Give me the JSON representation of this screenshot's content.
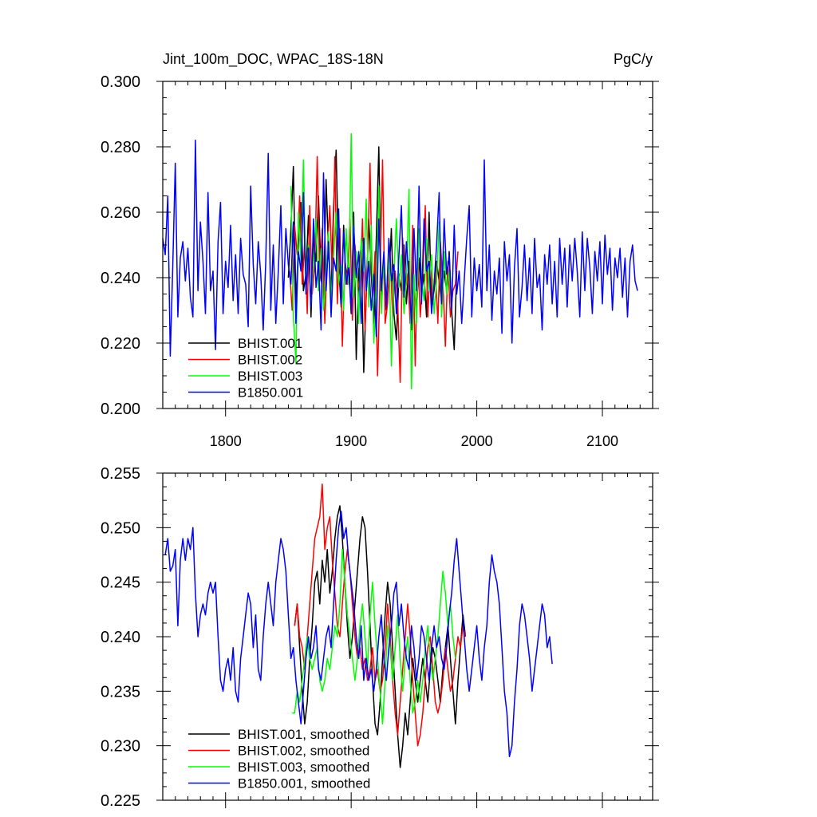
{
  "chart_data": [
    {
      "type": "line",
      "title": "Jint_100m_DOC, WPAC_18S-18N",
      "units": "PgC/y",
      "xlim": [
        1750,
        2140
      ],
      "ylim": [
        0.2,
        0.3
      ],
      "xticks": [
        1800,
        1900,
        2000,
        2100
      ],
      "xtick_labels": [
        "1800",
        "1900",
        "2000",
        "2100"
      ],
      "yticks": [
        0.2,
        0.22,
        0.24,
        0.26,
        0.28,
        0.3
      ],
      "ytick_labels": [
        "0.200",
        "0.220",
        "0.240",
        "0.260",
        "0.280",
        "0.300"
      ],
      "legend_position": "bottom-left",
      "grid": false,
      "series": [
        {
          "name": "BHIST.001",
          "color": "#000000",
          "x_start": 1850,
          "x_step": 2,
          "values": [
            0.24,
            0.255,
            0.274,
            0.232,
            0.25,
            0.263,
            0.236,
            0.241,
            0.259,
            0.228,
            0.252,
            0.245,
            0.265,
            0.24,
            0.233,
            0.27,
            0.248,
            0.236,
            0.262,
            0.279,
            0.244,
            0.231,
            0.256,
            0.238,
            0.247,
            0.229,
            0.26,
            0.215,
            0.242,
            0.25,
            0.211,
            0.235,
            0.258,
            0.241,
            0.226,
            0.252,
            0.28,
            0.233,
            0.244,
            0.23,
            0.238,
            0.255,
            0.229,
            0.221,
            0.241,
            0.236,
            0.25,
            0.232,
            0.245,
            0.224,
            0.238,
            0.229,
            0.246,
            0.235,
            0.241,
            0.228,
            0.26,
            0.232,
            0.236,
            0.245,
            0.239,
            0.232,
            0.242,
            0.236,
            0.248,
            0.23,
            0.218,
            0.242
          ]
        },
        {
          "name": "BHIST.002",
          "color": "#ff0000",
          "x_start": 1851,
          "x_step": 2,
          "values": [
            0.242,
            0.23,
            0.256,
            0.247,
            0.265,
            0.238,
            0.251,
            0.229,
            0.262,
            0.235,
            0.244,
            0.277,
            0.239,
            0.255,
            0.226,
            0.248,
            0.262,
            0.24,
            0.277,
            0.232,
            0.255,
            0.219,
            0.246,
            0.238,
            0.258,
            0.227,
            0.25,
            0.24,
            0.235,
            0.258,
            0.224,
            0.245,
            0.275,
            0.232,
            0.248,
            0.21,
            0.24,
            0.276,
            0.226,
            0.232,
            0.248,
            0.228,
            0.242,
            0.233,
            0.208,
            0.252,
            0.236,
            0.241,
            0.226,
            0.256,
            0.213,
            0.249,
            0.228,
            0.24,
            0.262,
            0.228,
            0.245,
            0.232,
            0.243,
            0.226,
            0.251,
            0.239,
            0.219,
            0.245,
            0.228,
            0.236,
            0.238,
            0.248
          ]
        },
        {
          "name": "BHIST.003",
          "color": "#00ff00",
          "x_start": 1852,
          "x_step": 2,
          "values": [
            0.268,
            0.228,
            0.214,
            0.26,
            0.245,
            0.276,
            0.238,
            0.25,
            0.232,
            0.245,
            0.258,
            0.236,
            0.249,
            0.23,
            0.24,
            0.254,
            0.233,
            0.247,
            0.26,
            0.238,
            0.244,
            0.23,
            0.255,
            0.238,
            0.284,
            0.234,
            0.248,
            0.226,
            0.252,
            0.242,
            0.264,
            0.231,
            0.256,
            0.22,
            0.236,
            0.268,
            0.229,
            0.245,
            0.233,
            0.25,
            0.213,
            0.241,
            0.258,
            0.237,
            0.247,
            0.229,
            0.239,
            0.267,
            0.206,
            0.241,
            0.226,
            0.255,
            0.24,
            0.233,
            0.252,
            0.236,
            0.247,
            0.229,
            0.239,
            0.257,
            0.228,
            0.248,
            0.235,
            0.242,
            0.23
          ]
        },
        {
          "name": "B1850.001",
          "color": "#0000ff",
          "x_start": 1750,
          "x_step": 2,
          "values": [
            0.252,
            0.247,
            0.265,
            0.216,
            0.244,
            0.275,
            0.228,
            0.246,
            0.251,
            0.239,
            0.249,
            0.234,
            0.228,
            0.282,
            0.236,
            0.257,
            0.245,
            0.229,
            0.266,
            0.236,
            0.242,
            0.218,
            0.251,
            0.263,
            0.229,
            0.245,
            0.237,
            0.256,
            0.233,
            0.247,
            0.229,
            0.252,
            0.241,
            0.238,
            0.225,
            0.268,
            0.244,
            0.232,
            0.251,
            0.241,
            0.224,
            0.245,
            0.278,
            0.23,
            0.25,
            0.226,
            0.242,
            0.262,
            0.232,
            0.255,
            0.244,
            0.238,
            0.257,
            0.226,
            0.248,
            0.242,
            0.266,
            0.235,
            0.249,
            0.231,
            0.258,
            0.237,
            0.245,
            0.224,
            0.272,
            0.236,
            0.251,
            0.228,
            0.246,
            0.242,
            0.261,
            0.232,
            0.254,
            0.238,
            0.243,
            0.229,
            0.256,
            0.24,
            0.248,
            0.226,
            0.252,
            0.236,
            0.245,
            0.23,
            0.241,
            0.222,
            0.258,
            0.236,
            0.248,
            0.231,
            0.252,
            0.239,
            0.244,
            0.229,
            0.247,
            0.262,
            0.234,
            0.251,
            0.24,
            0.226,
            0.255,
            0.236,
            0.268,
            0.232,
            0.258,
            0.242,
            0.245,
            0.229,
            0.238,
            0.25,
            0.266,
            0.232,
            0.258,
            0.241,
            0.247,
            0.23,
            0.256,
            0.235,
            0.242,
            0.226,
            0.239,
            0.252,
            0.262,
            0.228,
            0.246,
            0.236,
            0.244,
            0.231,
            0.276,
            0.236,
            0.25,
            0.227,
            0.242,
            0.235,
            0.246,
            0.223,
            0.251,
            0.239,
            0.247,
            0.22,
            0.243,
            0.255,
            0.228,
            0.237,
            0.25,
            0.233,
            0.246,
            0.229,
            0.252,
            0.237,
            0.241,
            0.224,
            0.247,
            0.238,
            0.25,
            0.232,
            0.245,
            0.228,
            0.252,
            0.238,
            0.249,
            0.231,
            0.25,
            0.239,
            0.252,
            0.242,
            0.228,
            0.254,
            0.236,
            0.252,
            0.243,
            0.229,
            0.248,
            0.239,
            0.251,
            0.232,
            0.253,
            0.241,
            0.249,
            0.23,
            0.246,
            0.24,
            0.249,
            0.234,
            0.246,
            0.228,
            0.245,
            0.25,
            0.239,
            0.236
          ]
        }
      ]
    },
    {
      "type": "line",
      "title": "",
      "xlim": [
        1750,
        2140
      ],
      "ylim": [
        0.225,
        0.255
      ],
      "xticks": [
        1800,
        1900,
        2000,
        2100
      ],
      "yticks": [
        0.225,
        0.23,
        0.235,
        0.24,
        0.245,
        0.25,
        0.255
      ],
      "ytick_labels": [
        "0.225",
        "0.230",
        "0.235",
        "0.240",
        "0.245",
        "0.250",
        "0.255"
      ],
      "legend_position": "bottom-left",
      "grid": false,
      "series": [
        {
          "name": "BHIST.001, smoothed",
          "color": "#000000",
          "x_start": 1855,
          "x_step": 2,
          "values": [
            0.241,
            0.243,
            0.239,
            0.235,
            0.232,
            0.234,
            0.238,
            0.241,
            0.245,
            0.246,
            0.243,
            0.247,
            0.245,
            0.248,
            0.244,
            0.246,
            0.249,
            0.251,
            0.252,
            0.249,
            0.245,
            0.241,
            0.238,
            0.24,
            0.243,
            0.246,
            0.249,
            0.251,
            0.25,
            0.246,
            0.241,
            0.236,
            0.232,
            0.231,
            0.234,
            0.238,
            0.242,
            0.245,
            0.243,
            0.239,
            0.235,
            0.231,
            0.228,
            0.23,
            0.233,
            0.231,
            0.234,
            0.238,
            0.236,
            0.234,
            0.236,
            0.238,
            0.236,
            0.234,
            0.237,
            0.239,
            0.238,
            0.236,
            0.234,
            0.237,
            0.239,
            0.241,
            0.238,
            0.235,
            0.232,
            0.236,
            0.239,
            0.242,
            0.24
          ]
        },
        {
          "name": "BHIST.002, smoothed",
          "color": "#ff0000",
          "x_start": 1855,
          "x_step": 2,
          "values": [
            0.241,
            0.243,
            0.24,
            0.239,
            0.237,
            0.24,
            0.243,
            0.246,
            0.249,
            0.25,
            0.251,
            0.254,
            0.248,
            0.25,
            0.251,
            0.247,
            0.244,
            0.241,
            0.24,
            0.243,
            0.246,
            0.248,
            0.246,
            0.243,
            0.24,
            0.238,
            0.239,
            0.237,
            0.238,
            0.236,
            0.237,
            0.239,
            0.236,
            0.237,
            0.235,
            0.236,
            0.239,
            0.243,
            0.24,
            0.236,
            0.233,
            0.231,
            0.234,
            0.237,
            0.24,
            0.243,
            0.24,
            0.236,
            0.233,
            0.23,
            0.231,
            0.233,
            0.236,
            0.239,
            0.24,
            0.237,
            0.234,
            0.233,
            0.234,
            0.236,
            0.239,
            0.237,
            0.235,
            0.236,
            0.238,
            0.24,
            0.239,
            0.241,
            0.24
          ]
        },
        {
          "name": "BHIST.003, smoothed",
          "color": "#00ff00",
          "x_start": 1853,
          "x_step": 2,
          "values": [
            0.233,
            0.233,
            0.235,
            0.234,
            0.236,
            0.238,
            0.24,
            0.238,
            0.237,
            0.238,
            0.239,
            0.236,
            0.235,
            0.236,
            0.238,
            0.237,
            0.239,
            0.241,
            0.24,
            0.243,
            0.248,
            0.245,
            0.242,
            0.24,
            0.238,
            0.236,
            0.238,
            0.241,
            0.243,
            0.24,
            0.237,
            0.242,
            0.245,
            0.241,
            0.238,
            0.235,
            0.232,
            0.236,
            0.241,
            0.239,
            0.236,
            0.239,
            0.242,
            0.238,
            0.235,
            0.238,
            0.24,
            0.236,
            0.233,
            0.234,
            0.236,
            0.234,
            0.236,
            0.239,
            0.241,
            0.238,
            0.236,
            0.238,
            0.24,
            0.243,
            0.246,
            0.244,
            0.241,
            0.243,
            0.24,
            0.238
          ]
        },
        {
          "name": "B1850.001, smoothed",
          "color": "#0000ff",
          "x_start": 1752,
          "x_step": 2,
          "values": [
            0.2475,
            0.249,
            0.246,
            0.2465,
            0.248,
            0.241,
            0.247,
            0.249,
            0.247,
            0.249,
            0.248,
            0.25,
            0.244,
            0.24,
            0.242,
            0.243,
            0.242,
            0.244,
            0.245,
            0.244,
            0.245,
            0.24,
            0.236,
            0.235,
            0.237,
            0.238,
            0.236,
            0.239,
            0.235,
            0.234,
            0.238,
            0.24,
            0.242,
            0.244,
            0.243,
            0.239,
            0.242,
            0.237,
            0.236,
            0.24,
            0.243,
            0.245,
            0.243,
            0.241,
            0.245,
            0.247,
            0.249,
            0.248,
            0.246,
            0.242,
            0.238,
            0.239,
            0.236,
            0.234,
            0.232,
            0.235,
            0.238,
            0.24,
            0.238,
            0.239,
            0.241,
            0.237,
            0.236,
            0.238,
            0.24,
            0.241,
            0.239,
            0.243,
            0.247,
            0.25,
            0.2515,
            0.249,
            0.25,
            0.247,
            0.245,
            0.243,
            0.24,
            0.238,
            0.241,
            0.236,
            0.238,
            0.236,
            0.237,
            0.235,
            0.237,
            0.24,
            0.242,
            0.238,
            0.236,
            0.239,
            0.241,
            0.244,
            0.245,
            0.241,
            0.243,
            0.24,
            0.238,
            0.237,
            0.241,
            0.239,
            0.236,
            0.238,
            0.241,
            0.24,
            0.238,
            0.236,
            0.239,
            0.241,
            0.239,
            0.24,
            0.238,
            0.237,
            0.239,
            0.242,
            0.244,
            0.247,
            0.249,
            0.246,
            0.243,
            0.24,
            0.237,
            0.235,
            0.237,
            0.239,
            0.241,
            0.238,
            0.236,
            0.239,
            0.241,
            0.245,
            0.2475,
            0.246,
            0.245,
            0.243,
            0.239,
            0.235,
            0.233,
            0.229,
            0.23,
            0.234,
            0.237,
            0.241,
            0.243,
            0.242,
            0.24,
            0.238,
            0.235,
            0.237,
            0.239,
            0.241,
            0.243,
            0.242,
            0.239,
            0.24,
            0.2375
          ]
        }
      ]
    }
  ]
}
